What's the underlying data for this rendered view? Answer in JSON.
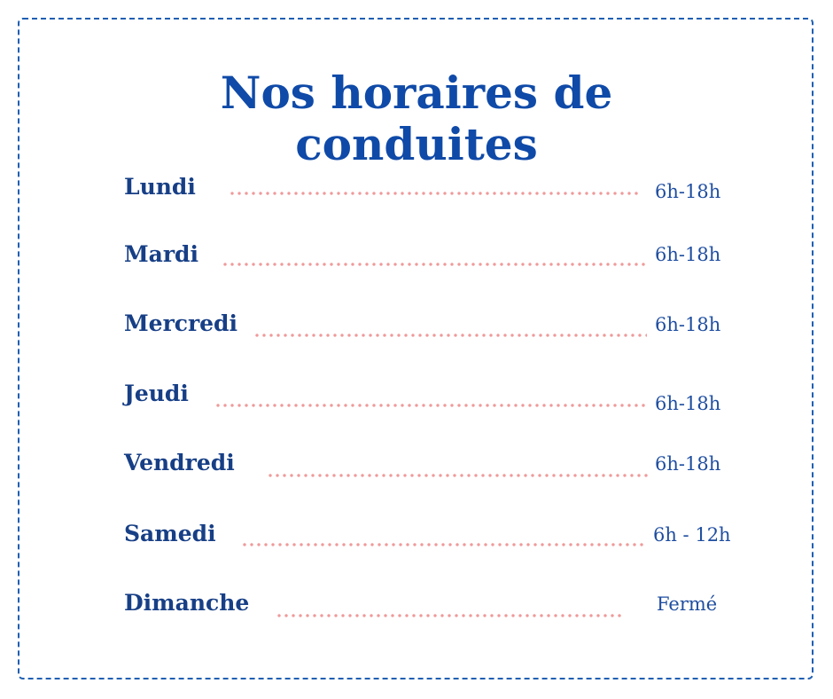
{
  "title": {
    "line1": "Nos horaires de",
    "line2": "conduites"
  },
  "schedule": [
    {
      "day": "Lundi",
      "hours": "6h-18h"
    },
    {
      "day": "Mardi",
      "hours": "6h-18h"
    },
    {
      "day": "Mercredi",
      "hours": "6h-18h"
    },
    {
      "day": "Jeudi",
      "hours": "6h-18h"
    },
    {
      "day": "Vendredi",
      "hours": "6h-18h"
    },
    {
      "day": "Samedi",
      "hours": "6h - 12h"
    },
    {
      "day": "Dimanche",
      "hours": "Fermé"
    }
  ],
  "colors": {
    "title": "#0f4aa8",
    "day": "#173f86",
    "hours": "#1f4ea0",
    "dots": "#ef9a9a",
    "frame": "#1f5fb3"
  }
}
